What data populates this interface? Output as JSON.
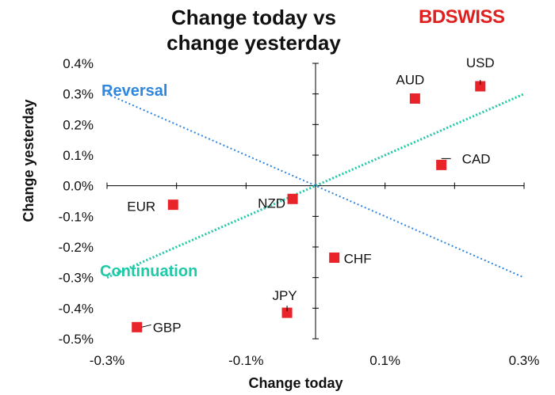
{
  "chart_data": {
    "type": "scatter",
    "title": "Change today vs change yesterday",
    "title_lines": [
      "Change today vs",
      "change yesterday"
    ],
    "xlabel": "Change today",
    "ylabel": "Change yesterday",
    "xlim": [
      -0.3,
      0.3
    ],
    "ylim": [
      -0.5,
      0.4
    ],
    "x_ticks": [
      -0.3,
      -0.1,
      0.1,
      0.3
    ],
    "x_tick_labels": [
      "-0.3%",
      "-0.1%",
      "0.1%",
      "0.3%"
    ],
    "y_ticks": [
      0.4,
      0.3,
      0.2,
      0.1,
      0.0,
      -0.1,
      -0.2,
      -0.3,
      -0.4,
      -0.5
    ],
    "y_tick_labels": [
      "0.4%",
      "0.3%",
      "0.2%",
      "0.1%",
      "0.0%",
      "-0.1%",
      "-0.2%",
      "-0.3%",
      "-0.4%",
      "-0.5%"
    ],
    "grid": false,
    "points": [
      {
        "label": "USD",
        "x": 0.237,
        "y": 0.325
      },
      {
        "label": "AUD",
        "x": 0.143,
        "y": 0.285
      },
      {
        "label": "CAD",
        "x": 0.181,
        "y": 0.068
      },
      {
        "label": "NZD",
        "x": -0.033,
        "y": -0.043
      },
      {
        "label": "EUR",
        "x": -0.205,
        "y": -0.062
      },
      {
        "label": "CHF",
        "x": 0.027,
        "y": -0.235
      },
      {
        "label": "JPY",
        "x": -0.041,
        "y": -0.415
      },
      {
        "label": "GBP",
        "x": -0.257,
        "y": -0.462
      }
    ],
    "reference_lines": [
      {
        "name": "Reversal",
        "x": [
          -0.3,
          0.3
        ],
        "y": [
          0.3,
          -0.3
        ],
        "color": "#2e86de"
      },
      {
        "name": "Continuation",
        "x": [
          -0.3,
          0.3
        ],
        "y": [
          -0.3,
          0.3
        ],
        "color": "#1ec9a8"
      }
    ],
    "marker_color": "#e8232a"
  },
  "brand": {
    "part1": "BD",
    "part2": "SWISS"
  }
}
